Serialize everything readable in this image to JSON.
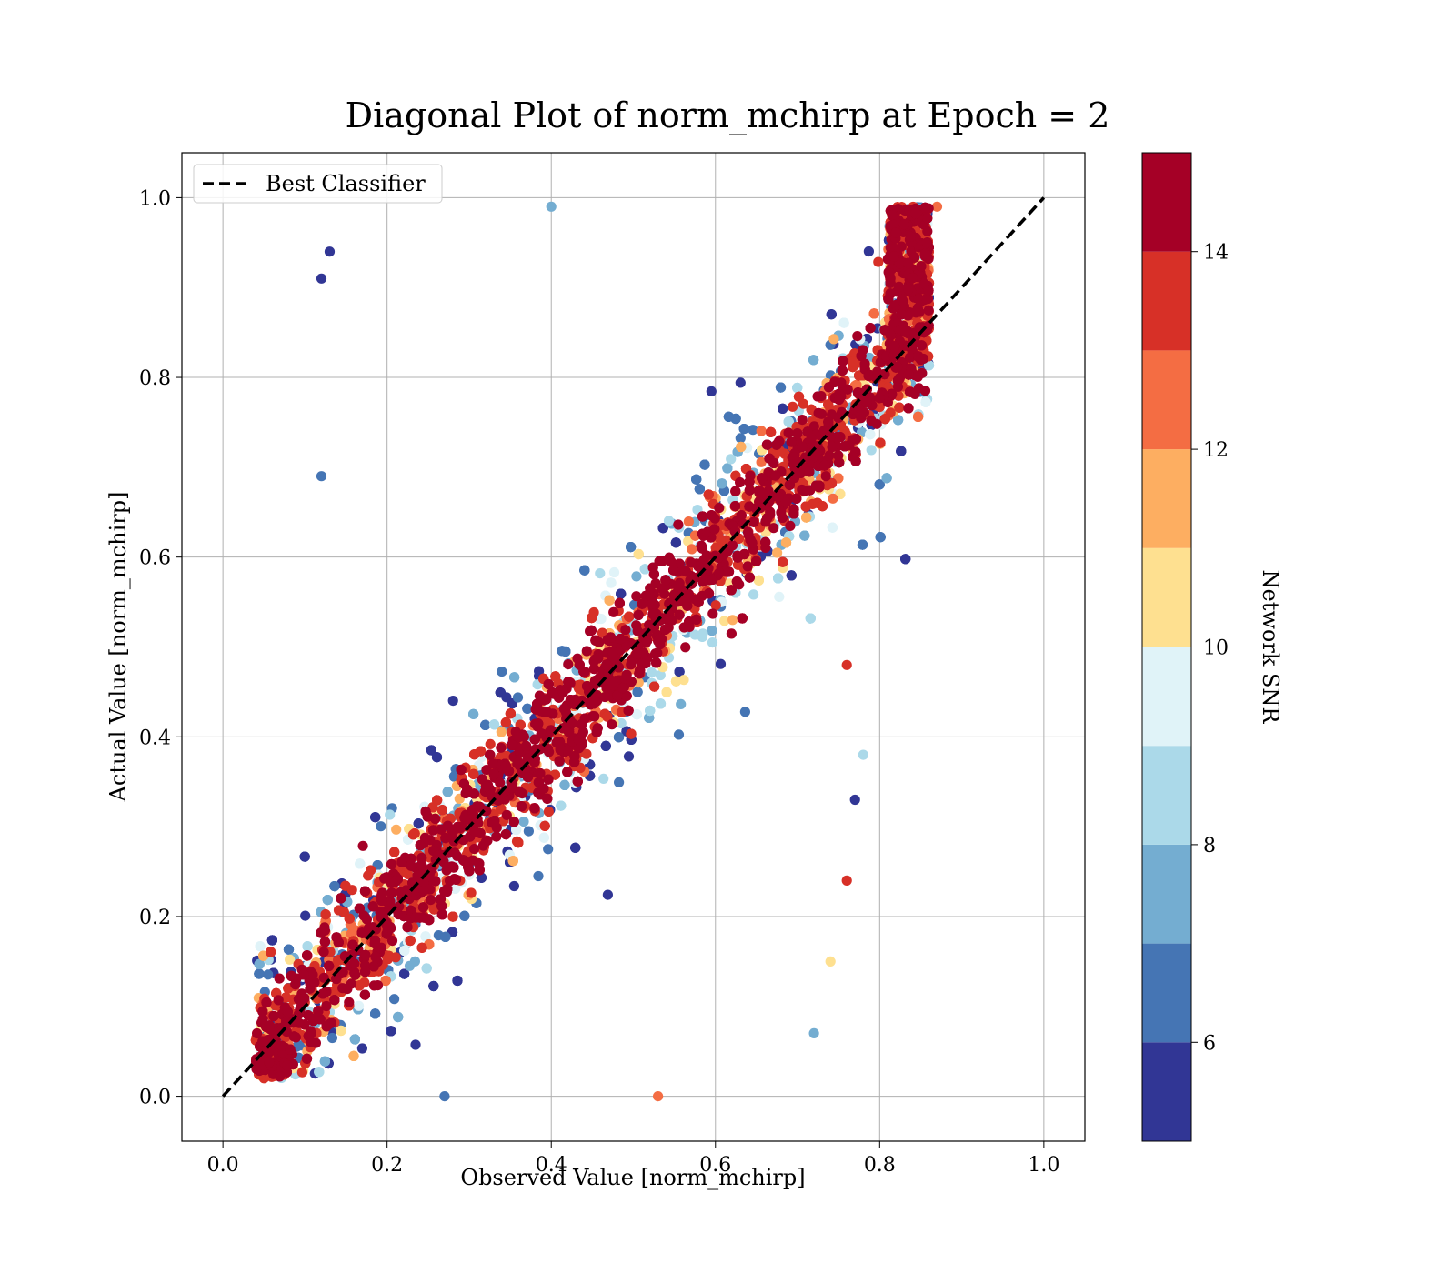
{
  "chart_data": {
    "type": "scatter",
    "title": "Diagonal Plot of norm_mchirp at Epoch = 2",
    "xlabel": "Observed Value [norm_mchirp]",
    "ylabel": "Actual Value [norm_mchirp]",
    "xlim": [
      -0.05,
      1.05
    ],
    "ylim": [
      -0.05,
      1.05
    ],
    "xticks": [
      "0.0",
      "0.2",
      "0.4",
      "0.6",
      "0.8",
      "1.0"
    ],
    "yticks": [
      "0.0",
      "0.2",
      "0.4",
      "0.6",
      "0.8",
      "1.0"
    ],
    "grid": true,
    "legend": {
      "position": "upper-left",
      "entries": [
        "Best Classifier"
      ]
    },
    "reference_line": {
      "name": "Best Classifier",
      "style": "dashed",
      "color": "#000000",
      "x": [
        0.0,
        1.0
      ],
      "y": [
        0.0,
        1.0
      ]
    },
    "colorbar": {
      "label": "Network SNR",
      "range": [
        5.0,
        15.0
      ],
      "ticks": [
        "6",
        "8",
        "10",
        "12",
        "14"
      ],
      "bins": [
        {
          "low": 5,
          "high": 6,
          "color": "#313695"
        },
        {
          "low": 6,
          "high": 7,
          "color": "#4575b4"
        },
        {
          "low": 7,
          "high": 8,
          "color": "#74add1"
        },
        {
          "low": 8,
          "high": 9,
          "color": "#abd9e9"
        },
        {
          "low": 9,
          "high": 10,
          "color": "#e0f3f8"
        },
        {
          "low": 10,
          "high": 11,
          "color": "#fee090"
        },
        {
          "low": 11,
          "high": 12,
          "color": "#fdae61"
        },
        {
          "low": 12,
          "high": 13,
          "color": "#f46d43"
        },
        {
          "low": 13,
          "high": 14,
          "color": "#d73027"
        },
        {
          "low": 14,
          "high": 15,
          "color": "#a50026"
        }
      ]
    },
    "scatter": {
      "point_count": 9000,
      "observed_range": [
        0.04,
        0.87
      ],
      "actual_range": [
        0.0,
        0.99
      ],
      "trend": "points cluster along y = x; high-SNR points lie close to the diagonal, low-SNR points scatter widely",
      "sample_points": [
        {
          "x": 0.12,
          "y": 0.91,
          "snr": 5.5
        },
        {
          "x": 0.13,
          "y": 0.94,
          "snr": 5.5
        },
        {
          "x": 0.4,
          "y": 0.99,
          "snr": 7.5
        },
        {
          "x": 0.87,
          "y": 0.99,
          "snr": 12.5
        },
        {
          "x": 0.84,
          "y": 0.92,
          "snr": 13.5
        },
        {
          "x": 0.12,
          "y": 0.69,
          "snr": 6.5
        },
        {
          "x": 0.76,
          "y": 0.48,
          "snr": 13.5
        },
        {
          "x": 0.76,
          "y": 0.24,
          "snr": 13.5
        },
        {
          "x": 0.74,
          "y": 0.15,
          "snr": 10.5
        },
        {
          "x": 0.72,
          "y": 0.07,
          "snr": 7.5
        },
        {
          "x": 0.53,
          "y": 0.0,
          "snr": 12.5
        },
        {
          "x": 0.27,
          "y": 0.0,
          "snr": 6.5
        },
        {
          "x": 0.05,
          "y": 0.02,
          "snr": 13.5
        },
        {
          "x": 0.78,
          "y": 0.38,
          "snr": 8.5
        },
        {
          "x": 0.77,
          "y": 0.33,
          "snr": 5.5
        }
      ]
    }
  }
}
